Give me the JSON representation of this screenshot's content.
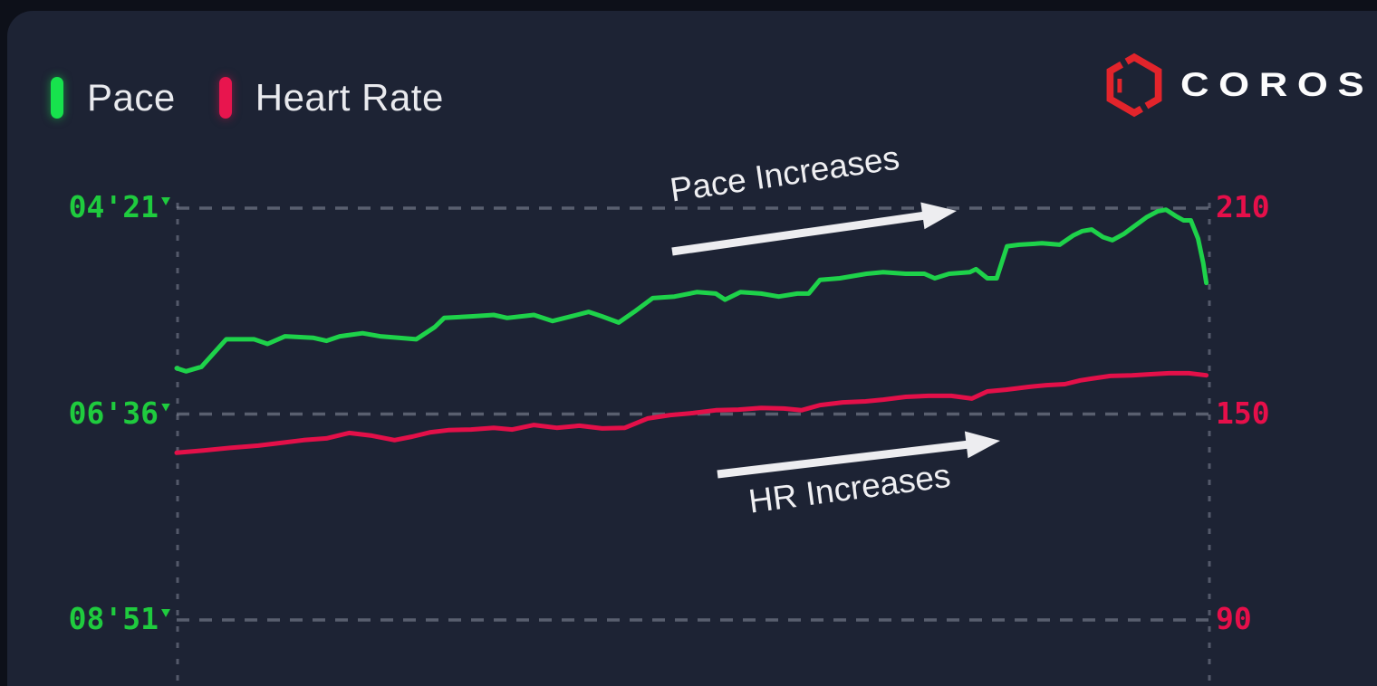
{
  "app": {
    "brand": "COROS"
  },
  "legend": [
    {
      "label": "Pace",
      "color": "#17e24d"
    },
    {
      "label": "Heart Rate",
      "color": "#e8154e"
    }
  ],
  "annotations": {
    "pace": "Pace Increases",
    "hr": "HR Increases"
  },
  "colors": {
    "background_outer": "#0d1019",
    "panel": "#1d2334",
    "pace_line": "#1ed24a",
    "pace_label": "#1fcb3e",
    "hr_line": "#e31049",
    "hr_label": "#e60f4a",
    "grid": "#8b90a0",
    "annotation": "#efeff2",
    "logo_red": "#e2242b",
    "logo_text": "#fcfcfd",
    "legend_text": "#e9eaee"
  },
  "chart_data": {
    "type": "line",
    "x_unit": "percent_of_activity",
    "grid": "dashed horizontal lines at each tick; dashed vertical lines at plot left/right edges",
    "legend_position": "top-left",
    "left_axis": {
      "title": "Pace",
      "unit": "min/km",
      "inverted": true,
      "range_seconds": [
        261,
        531
      ],
      "ticks": [
        {
          "label": "04'21\"",
          "seconds": 261
        },
        {
          "label": "06'36\"",
          "seconds": 396
        },
        {
          "label": "08'51\"",
          "seconds": 531
        }
      ]
    },
    "right_axis": {
      "title": "Heart Rate",
      "unit": "bpm",
      "range_bpm": [
        90,
        210
      ],
      "ticks": [
        {
          "label": "210",
          "bpm": 210
        },
        {
          "label": "150",
          "bpm": 150
        },
        {
          "label": "90",
          "bpm": 90
        }
      ]
    },
    "series": [
      {
        "name": "Pace",
        "axis": "left",
        "unit": "seconds_per_km",
        "color": "#1ed24a",
        "x": [
          0,
          0.9,
          2.4,
          4.8,
          7.5,
          8.8,
          10.5,
          13.2,
          14.5,
          15.8,
          18,
          19.7,
          21.5,
          23.2,
          25,
          25.9,
          28.5,
          30.7,
          32,
          34.6,
          36.4,
          38.2,
          39.9,
          41.2,
          42.8,
          44.3,
          46.1,
          48.2,
          50.4,
          52.2,
          53.1,
          54.6,
          56.6,
          58.3,
          60.1,
          61.2,
          62.3,
          64.2,
          66.8,
          68.4,
          70.6,
          72.4,
          73.4,
          74.8,
          76.8,
          77.4,
          78.5,
          79.4,
          80.4,
          81.6,
          83.8,
          85.5,
          86.8,
          87.7,
          88.6,
          89.7,
          90.6,
          91.7,
          92.7,
          93.9,
          95,
          95.8,
          96.7,
          97.5,
          98.2,
          98.9,
          99.4,
          99.7
        ],
        "values": [
          366,
          368,
          365,
          347,
          347,
          350,
          345,
          346,
          348,
          345,
          343,
          345,
          346,
          347,
          339,
          333,
          332,
          331,
          333,
          331,
          335,
          332,
          329,
          332,
          336,
          329,
          320,
          319,
          316,
          317,
          321,
          316,
          317,
          319,
          317,
          317,
          308,
          307,
          304,
          303,
          304,
          304,
          307,
          304,
          303,
          301,
          307,
          307,
          286,
          285,
          284,
          285,
          279,
          276,
          275,
          280,
          282,
          278,
          273,
          267,
          263,
          262,
          266,
          269,
          269,
          281,
          297,
          310
        ]
      },
      {
        "name": "Heart Rate",
        "axis": "right",
        "unit": "bpm",
        "color": "#e31049",
        "x": [
          0,
          2.6,
          5.3,
          7.9,
          10.1,
          12.3,
          14.5,
          16.7,
          18.9,
          21.1,
          22.8,
          24.6,
          26.3,
          28.5,
          30.7,
          32.5,
          34.6,
          36.8,
          39,
          41.2,
          43.4,
          45.6,
          47.8,
          50,
          52.2,
          54.4,
          56.6,
          58.8,
          60.5,
          62.3,
          64.5,
          66.7,
          68.4,
          70.6,
          72.8,
          75,
          77,
          78.5,
          80.3,
          82.5,
          84.2,
          86,
          87.5,
          88.6,
          90.4,
          92.5,
          94.3,
          96.1,
          98,
          99.7
        ],
        "values": [
          138.7,
          139.4,
          140.2,
          140.8,
          141.6,
          142.4,
          142.9,
          144.5,
          143.7,
          142.4,
          143.4,
          144.7,
          145.3,
          145.5,
          146,
          145.5,
          146.8,
          146,
          146.6,
          145.8,
          146,
          148.7,
          149.7,
          150.3,
          151.1,
          151.3,
          151.8,
          151.6,
          151.1,
          152.6,
          153.4,
          153.7,
          154.2,
          155,
          155.3,
          155.3,
          154.5,
          156.6,
          157.1,
          157.9,
          158.4,
          158.7,
          159.8,
          160.3,
          161.1,
          161.3,
          161.6,
          161.9,
          161.9,
          161.3
        ]
      }
    ]
  }
}
